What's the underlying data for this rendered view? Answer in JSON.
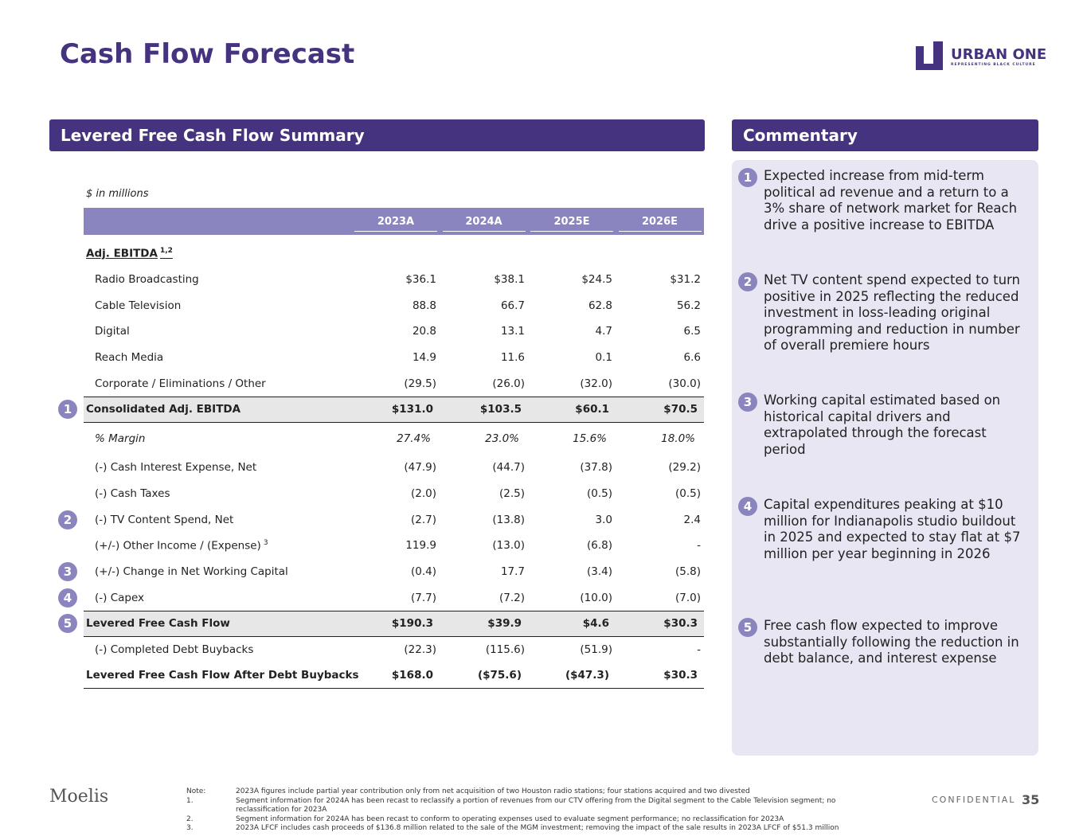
{
  "title": "Cash Flow Forecast",
  "logo": {
    "name": "URBAN ONE",
    "tagline": "REPRESENTING BLACK CULTURE"
  },
  "summary": {
    "heading": "Levered Free Cash Flow Summary",
    "units": "$ in millions",
    "columns": [
      "2023A",
      "2024A",
      "2025E",
      "2026E"
    ],
    "rows": [
      {
        "kind": "section",
        "label": "Adj. EBITDA",
        "sup": "1,2"
      },
      {
        "kind": "item",
        "label": "Radio Broadcasting",
        "values": [
          "$36.1",
          "$38.1",
          "$24.5",
          "$31.2"
        ]
      },
      {
        "kind": "item",
        "label": "Cable Television",
        "values": [
          "88.8",
          "66.7",
          "62.8",
          "56.2"
        ]
      },
      {
        "kind": "item",
        "label": "Digital",
        "values": [
          "20.8",
          "13.1",
          "4.7",
          "6.5"
        ]
      },
      {
        "kind": "item",
        "label": "Reach Media",
        "values": [
          "14.9",
          "11.6",
          "0.1",
          "6.6"
        ]
      },
      {
        "kind": "item",
        "label": "Corporate / Eliminations / Other",
        "values": [
          "(29.5)",
          "(26.0)",
          "(32.0)",
          "(30.0)"
        ]
      },
      {
        "kind": "total",
        "label": "Consolidated Adj. EBITDA",
        "marker": "1",
        "values": [
          "$131.0",
          "$103.5",
          "$60.1",
          "$70.5"
        ]
      },
      {
        "kind": "margin",
        "label": "% Margin",
        "values": [
          "27.4%",
          "23.0%",
          "15.6%",
          "18.0%"
        ]
      },
      {
        "kind": "item",
        "label": "(-) Cash Interest Expense, Net",
        "values": [
          "(47.9)",
          "(44.7)",
          "(37.8)",
          "(29.2)"
        ]
      },
      {
        "kind": "item",
        "label": "(-) Cash Taxes",
        "values": [
          "(2.0)",
          "(2.5)",
          "(0.5)",
          "(0.5)"
        ]
      },
      {
        "kind": "item",
        "label": "(-) TV Content Spend, Net",
        "marker": "2",
        "values": [
          "(2.7)",
          "(13.8)",
          "3.0",
          "2.4"
        ]
      },
      {
        "kind": "item",
        "label": "(+/-) Other Income / (Expense)",
        "sup": "3",
        "values": [
          "119.9",
          "(13.0)",
          "(6.8)",
          "-"
        ]
      },
      {
        "kind": "item",
        "label": "(+/-) Change in Net Working Capital",
        "marker": "3",
        "values": [
          "(0.4)",
          "17.7",
          "(3.4)",
          "(5.8)"
        ]
      },
      {
        "kind": "item",
        "label": "(-) Capex",
        "marker": "4",
        "values": [
          "(7.7)",
          "(7.2)",
          "(10.0)",
          "(7.0)"
        ]
      },
      {
        "kind": "total",
        "label": "Levered Free Cash Flow",
        "marker": "5",
        "values": [
          "$190.3",
          "$39.9",
          "$4.6",
          "$30.3"
        ]
      },
      {
        "kind": "item",
        "label": "(-) Completed Debt Buybacks",
        "values": [
          "(22.3)",
          "(115.6)",
          "(51.9)",
          "-"
        ]
      },
      {
        "kind": "final",
        "label": "Levered Free Cash Flow After Debt Buybacks",
        "values": [
          "$168.0",
          "($75.6)",
          "($47.3)",
          "$30.3"
        ]
      }
    ]
  },
  "commentary": {
    "heading": "Commentary",
    "items": [
      {
        "number": "1",
        "text": "Expected increase from mid-term political ad revenue and a return to a 3% share of network market for Reach drive a positive increase to EBITDA"
      },
      {
        "number": "2",
        "text": "Net TV content spend expected to turn positive in 2025 reflecting the reduced investment in loss-leading original programming and reduction in number of overall premiere hours"
      },
      {
        "number": "3",
        "text": "Working capital estimated based on historical capital drivers and extrapolated through the forecast period"
      },
      {
        "number": "4",
        "text": "Capital expenditures peaking at $10 million for Indianapolis studio buildout in 2025 and expected to stay flat at $7 million per year beginning in 2026"
      },
      {
        "number": "5",
        "text": "Free cash flow expected to improve substantially following the reduction in debt balance, and interest expense"
      }
    ]
  },
  "footer": {
    "brand": "Moelis",
    "notes": [
      {
        "label": "Note:",
        "text": "2023A figures include partial year contribution only from net acquisition of two Houston radio stations; four stations acquired and two divested"
      },
      {
        "label": "1.",
        "text": "Segment information for 2024A has been recast to reclassify a portion of revenues from our CTV offering from the Digital segment to the Cable Television segment; no reclassification for 2023A"
      },
      {
        "label": "2.",
        "text": "Segment information for 2024A has been recast to conform to operating expenses used to evaluate segment performance; no reclassification for 2023A"
      },
      {
        "label": "3.",
        "text": "2023A LFCF includes cash proceeds of $136.8 million related to the sale of the MGM investment; removing the impact of the sale results in 2023A LFCF of $51.3 million"
      }
    ],
    "confidential": "CONFIDENTIAL",
    "page": "35"
  }
}
